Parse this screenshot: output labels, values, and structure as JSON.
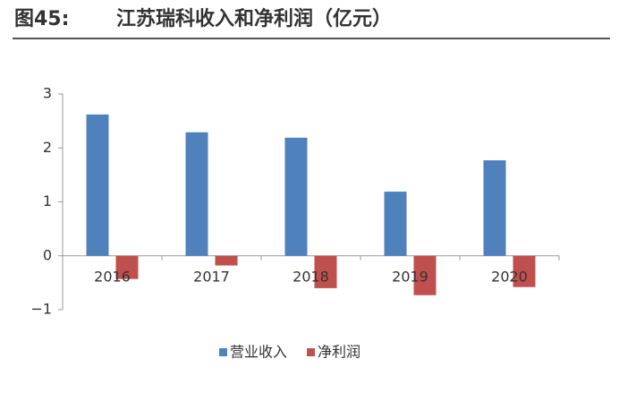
{
  "chart_data": {
    "type": "bar",
    "figure_label": "图45:",
    "title": "江苏瑞科收入和净利润（亿元）",
    "categories": [
      "2016",
      "2017",
      "2018",
      "2019",
      "2020"
    ],
    "series": [
      {
        "name": "营业收入",
        "color": "#4f81bd",
        "values": [
          2.62,
          2.29,
          2.19,
          1.19,
          1.77
        ]
      },
      {
        "name": "净利润",
        "color": "#c0504d",
        "values": [
          -0.43,
          -0.18,
          -0.6,
          -0.73,
          -0.58
        ]
      }
    ],
    "ylim": [
      -1,
      3
    ],
    "yticks": [
      {
        "value": -1,
        "label": "−1"
      },
      0,
      1,
      2,
      3
    ],
    "legend": "bottom"
  }
}
